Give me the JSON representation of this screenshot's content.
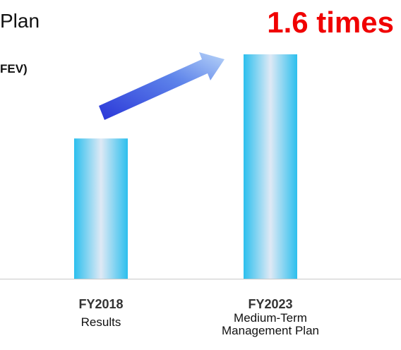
{
  "header": {
    "plan_fragment": "Plan",
    "unit_fragment": "FEV)",
    "headline": "1.6 times"
  },
  "colors": {
    "bar_edge": "#2bbfee",
    "bar_center": "#dfe9f5",
    "arrow": "#3d4fe6",
    "headline": "#f00000"
  },
  "chart_data": {
    "type": "bar",
    "categories": [
      {
        "year": "FY2018",
        "sub": [
          "Results"
        ]
      },
      {
        "year": "FY2023",
        "sub": [
          "Medium-Term",
          "Management Plan"
        ]
      }
    ],
    "values": [
      1.0,
      1.6
    ],
    "ylim": [
      0,
      1.6
    ],
    "annotation": "1.6 times",
    "axis_visible": false,
    "grid": false
  }
}
